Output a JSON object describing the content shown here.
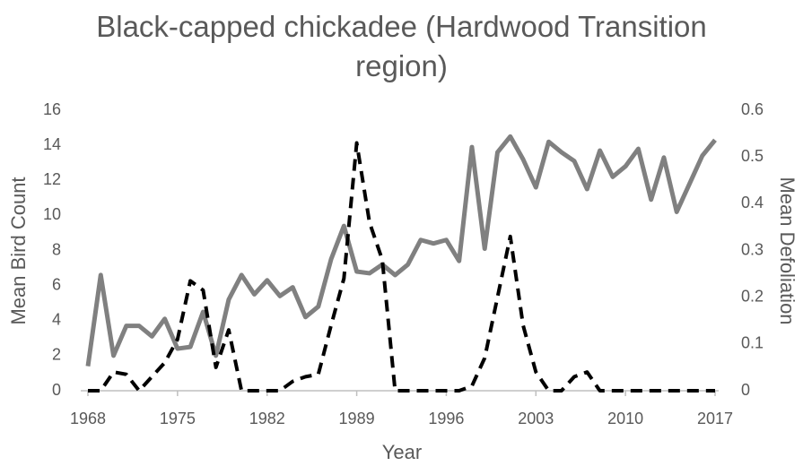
{
  "chart_data": {
    "type": "line",
    "title": "Black-capped chickadee (Hardwood Transition region)",
    "x_label": "Year",
    "y_label": "Mean Bird Count",
    "y2_label": "Mean Defoliation",
    "x": [
      1968,
      1969,
      1970,
      1971,
      1972,
      1973,
      1974,
      1975,
      1976,
      1977,
      1978,
      1979,
      1980,
      1981,
      1982,
      1983,
      1984,
      1985,
      1986,
      1987,
      1988,
      1989,
      1990,
      1991,
      1992,
      1993,
      1994,
      1995,
      1996,
      1997,
      1998,
      1999,
      2000,
      2001,
      2002,
      2003,
      2004,
      2005,
      2006,
      2007,
      2008,
      2009,
      2010,
      2011,
      2012,
      2013,
      2014,
      2015,
      2016,
      2017
    ],
    "xlim": [
      1968,
      2017
    ],
    "xticks": [
      1968,
      1975,
      1982,
      1989,
      1996,
      2003,
      2010,
      2017
    ],
    "ylim": [
      0,
      16
    ],
    "yticks": [
      0,
      2,
      4,
      6,
      8,
      10,
      12,
      14,
      16
    ],
    "y2lim": [
      0,
      0.6
    ],
    "y2ticks": [
      0,
      0.1,
      0.2,
      0.3,
      0.4,
      0.5,
      0.6
    ],
    "series": [
      {
        "name": "Mean Bird Count",
        "color": "#808080",
        "dashed": false,
        "values": [
          1.4,
          6.6,
          2.0,
          3.7,
          3.7,
          3.1,
          4.1,
          2.4,
          2.5,
          4.5,
          2.0,
          5.2,
          6.6,
          5.5,
          6.3,
          5.4,
          5.9,
          4.2,
          4.8,
          7.5,
          9.4,
          6.8,
          6.7,
          7.2,
          6.6,
          7.2,
          8.6,
          8.4,
          8.6,
          7.4,
          13.9,
          8.1,
          13.6,
          14.5,
          13.2,
          11.6,
          14.2,
          13.6,
          13.1,
          11.5,
          13.7,
          12.2,
          12.8,
          13.8,
          10.9,
          13.3,
          10.2,
          11.8,
          13.4,
          14.3
        ]
      },
      {
        "name": "Mean Defoliation",
        "color": "#000000",
        "dashed": true,
        "axis": "y2",
        "values": [
          0,
          0,
          0.04,
          0.035,
          0,
          0.03,
          0.06,
          0.11,
          0.235,
          0.215,
          0.05,
          0.13,
          0,
          0,
          0,
          0,
          0.02,
          0.03,
          0.035,
          0.14,
          0.24,
          0.53,
          0.36,
          0.28,
          0,
          0,
          0,
          0,
          0,
          0,
          0.01,
          0.07,
          0.2,
          0.33,
          0.14,
          0.04,
          0,
          0,
          0.03,
          0.04,
          0,
          0,
          0,
          0,
          0,
          0,
          0,
          0,
          0,
          0
        ]
      }
    ]
  }
}
